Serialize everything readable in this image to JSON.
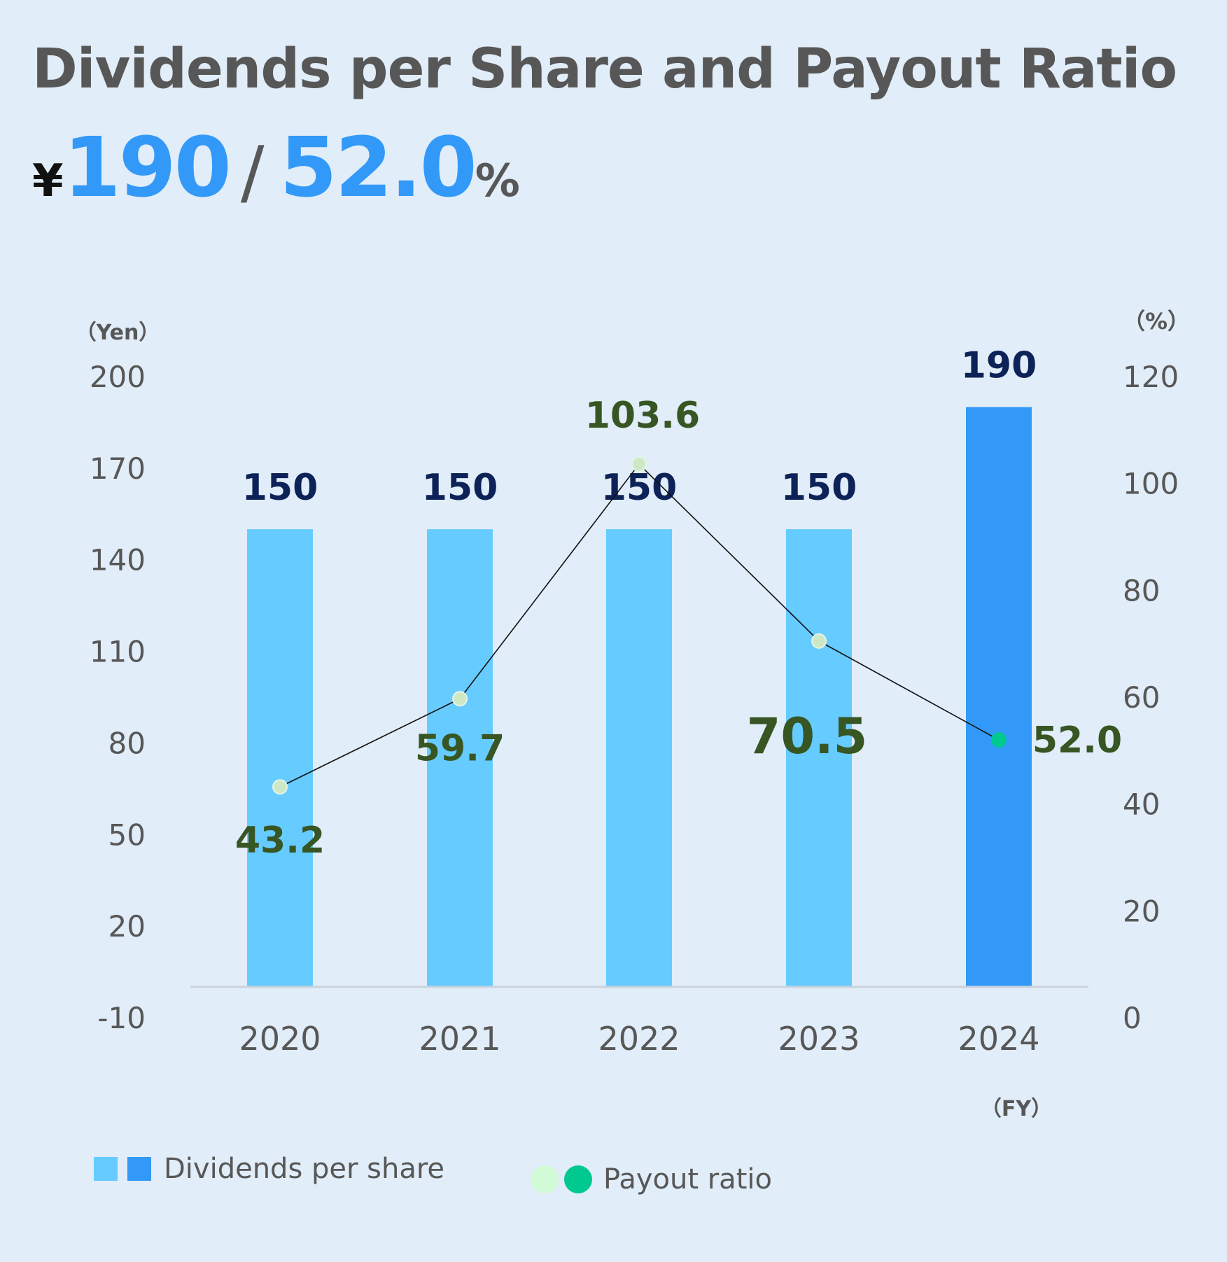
{
  "title": "Dividends per Share and Payout Ratio",
  "headline": {
    "yen_symbol": "¥",
    "dividend": "190",
    "slash": "/",
    "payout": "52.0",
    "pct_symbol": "%"
  },
  "chart_data": {
    "type": "bar",
    "categories": [
      "2020",
      "2021",
      "2022",
      "2023",
      "2024"
    ],
    "y_left": {
      "unit_label": "（Yen）",
      "ticks": [
        "-10",
        "20",
        "50",
        "80",
        "110",
        "140",
        "170",
        "200"
      ],
      "range": [
        -10,
        200
      ]
    },
    "y_right": {
      "unit_label": "（%）",
      "ticks": [
        "0",
        "20",
        "40",
        "60",
        "80",
        "100",
        "120"
      ],
      "range": [
        0,
        120
      ]
    },
    "x_unit_label": "（FY）",
    "series": [
      {
        "name": "Dividends per share",
        "kind": "bar",
        "axis": "left",
        "values": [
          150,
          150,
          150,
          150,
          190
        ],
        "labels": [
          "150",
          "150",
          "150",
          "150",
          "190"
        ],
        "colors": [
          "#66cbff",
          "#66cbff",
          "#66cbff",
          "#66cbff",
          "#3399f8"
        ]
      },
      {
        "name": "Payout ratio",
        "kind": "line",
        "axis": "right",
        "values": [
          43.2,
          59.7,
          103.6,
          70.5,
          52.0
        ],
        "labels": [
          "43.2",
          "59.7",
          "103.6",
          "70.5",
          "52.0"
        ],
        "colors": [
          "#cde8c5",
          "#cde8c5",
          "#cde8c5",
          "#cde8c5",
          "#00c98f"
        ]
      }
    ],
    "legend": {
      "dividends_label": "Dividends per share",
      "payout_label": "Payout ratio",
      "dividends_colors": [
        "#66cbff",
        "#3399f8"
      ],
      "payout_colors": [
        "#d1fad7",
        "#00c98f"
      ]
    },
    "label_colors": {
      "bar": "#0d2257",
      "line": "#375623"
    }
  }
}
